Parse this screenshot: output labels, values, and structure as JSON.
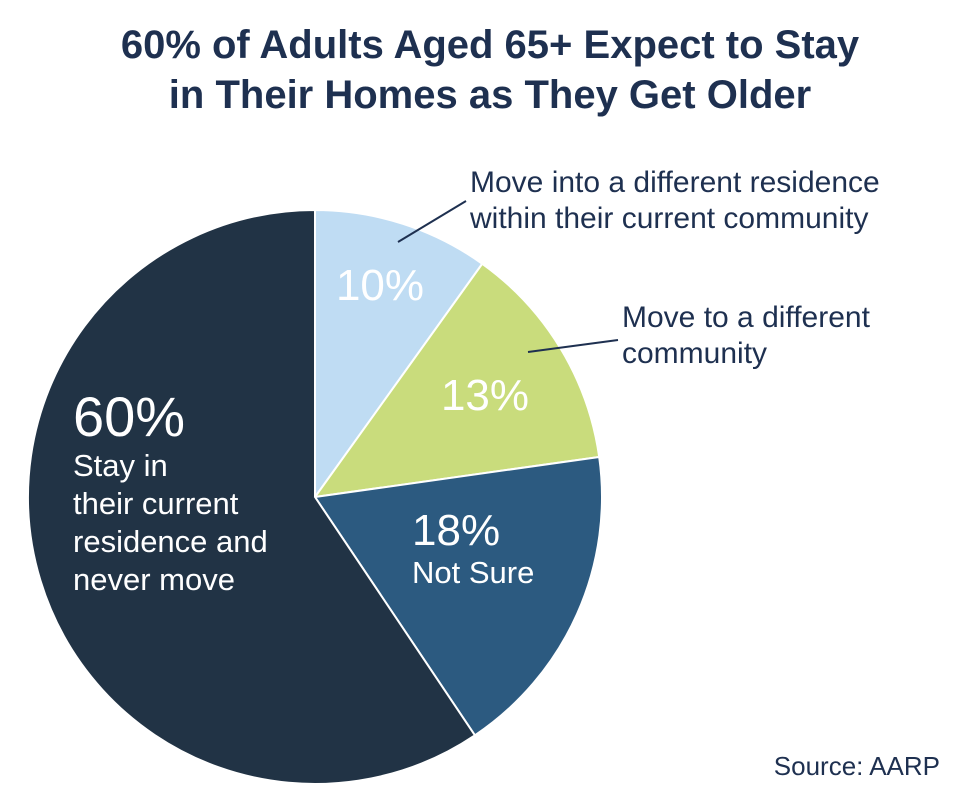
{
  "chart_data": {
    "type": "pie",
    "title_lines": [
      "60% of Adults Aged 65+ Expect to Stay",
      "in Their Homes as They Get Older"
    ],
    "slices": [
      {
        "label": "Move into a different residence within their current community",
        "label_lines": [
          "Move into a different residence",
          "within their current community"
        ],
        "value": 10,
        "value_text": "10%",
        "color": "#bfdcf3",
        "text_color": "#ffffff",
        "callout": true
      },
      {
        "label": "Move to a different community",
        "label_lines": [
          "Move to a different",
          "community"
        ],
        "value": 13,
        "value_text": "13%",
        "color": "#c9dc7c",
        "text_color": "#ffffff",
        "callout": true
      },
      {
        "label": "Not Sure",
        "label_lines": [
          "Not Sure"
        ],
        "value": 18,
        "value_text": "18%",
        "color": "#2c5a80",
        "text_color": "#ffffff",
        "callout": false
      },
      {
        "label": "Stay in their current residence and never move",
        "label_lines": [
          "Stay in",
          "their current",
          "residence and",
          "never move"
        ],
        "value": 60,
        "value_text": "60%",
        "color": "#213345",
        "text_color": "#ffffff",
        "callout": false
      }
    ],
    "start_angle_deg": 0,
    "direction": "clockwise",
    "source": "Source: AARP"
  }
}
